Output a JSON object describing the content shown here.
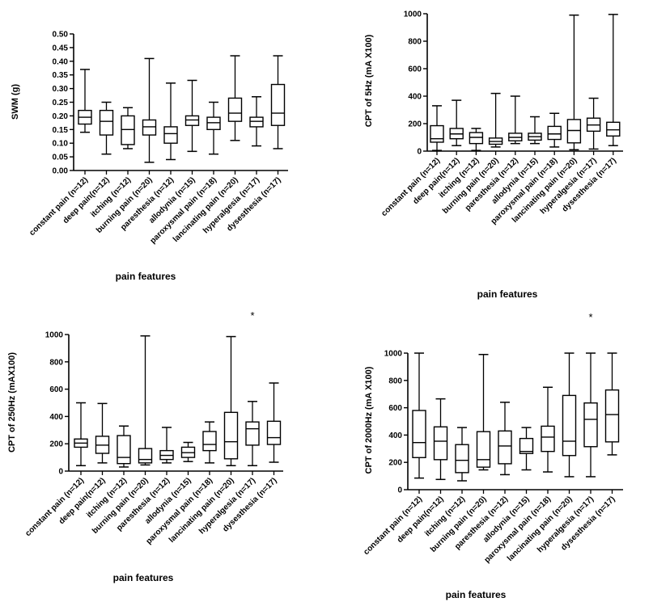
{
  "chart_data": [
    {
      "type": "box",
      "ylabel": "SWM (g)",
      "xlabel": "pain features",
      "ylim": [
        0,
        0.5
      ],
      "yticks": [
        "0.00",
        "0.05",
        "0.10",
        "0.15",
        "0.20",
        "0.25",
        "0.30",
        "0.35",
        "0.40",
        "0.45",
        "0.50"
      ],
      "categories": [
        "constant pain (n=12)",
        "deep pain(n=12)",
        "itching (n=12)",
        "burning pain (n=20)",
        "paresthesia (n=12)",
        "allodynia (n=15)",
        "paroxysmal pain (n=18)",
        "lancinating pain (n=20)",
        "hyperalgesia (n=17)",
        "dysesthesia (n=17)"
      ],
      "boxes": [
        {
          "min": 0.14,
          "q1": 0.17,
          "median": 0.195,
          "q3": 0.22,
          "max": 0.37
        },
        {
          "min": 0.06,
          "q1": 0.13,
          "median": 0.18,
          "q3": 0.22,
          "max": 0.25
        },
        {
          "min": 0.08,
          "q1": 0.095,
          "median": 0.15,
          "q3": 0.2,
          "max": 0.23
        },
        {
          "min": 0.03,
          "q1": 0.13,
          "median": 0.16,
          "q3": 0.185,
          "max": 0.41
        },
        {
          "min": 0.04,
          "q1": 0.1,
          "median": 0.135,
          "q3": 0.16,
          "max": 0.32
        },
        {
          "min": 0.07,
          "q1": 0.165,
          "median": 0.185,
          "q3": 0.2,
          "max": 0.33
        },
        {
          "min": 0.06,
          "q1": 0.15,
          "median": 0.175,
          "q3": 0.195,
          "max": 0.25
        },
        {
          "min": 0.11,
          "q1": 0.18,
          "median": 0.21,
          "q3": 0.265,
          "max": 0.42
        },
        {
          "min": 0.09,
          "q1": 0.16,
          "median": 0.18,
          "q3": 0.195,
          "max": 0.27
        },
        {
          "min": 0.08,
          "q1": 0.165,
          "median": 0.21,
          "q3": 0.315,
          "max": 0.42
        }
      ],
      "annotation": ""
    },
    {
      "type": "box",
      "ylabel": "CPT of 5Hz (mA X100)",
      "xlabel": "pain features",
      "ylim": [
        0,
        1000
      ],
      "yticks": [
        "0",
        "200",
        "400",
        "600",
        "800",
        "1000"
      ],
      "categories": [
        "constant pain (n=12)",
        "deep pain(n=12)",
        "itching (n=12)",
        "burning pain (n=20)",
        "paresthesia (n=12)",
        "allodynia (n=15)",
        "paroxysmal pain (n=18)",
        "lancinating pain (n=20)",
        "hyperalgesia (n=17)",
        "dysesthesia (n=17)"
      ],
      "boxes": [
        {
          "min": 5,
          "q1": 65,
          "median": 90,
          "q3": 185,
          "max": 330
        },
        {
          "min": 40,
          "q1": 90,
          "median": 125,
          "q3": 165,
          "max": 370
        },
        {
          "min": 5,
          "q1": 55,
          "median": 100,
          "q3": 135,
          "max": 165
        },
        {
          "min": 30,
          "q1": 50,
          "median": 70,
          "q3": 95,
          "max": 420
        },
        {
          "min": 55,
          "q1": 75,
          "median": 100,
          "q3": 130,
          "max": 400
        },
        {
          "min": 55,
          "q1": 80,
          "median": 105,
          "q3": 130,
          "max": 250
        },
        {
          "min": 30,
          "q1": 85,
          "median": 125,
          "q3": 180,
          "max": 275
        },
        {
          "min": 10,
          "q1": 60,
          "median": 150,
          "q3": 230,
          "max": 990
        },
        {
          "min": 15,
          "q1": 145,
          "median": 190,
          "q3": 240,
          "max": 385
        },
        {
          "min": 40,
          "q1": 110,
          "median": 155,
          "q3": 210,
          "max": 995
        }
      ],
      "annotation": ""
    },
    {
      "type": "box",
      "ylabel": "CPT of 250Hz (mAX100)",
      "xlabel": "pain features",
      "ylim": [
        0,
        1000
      ],
      "yticks": [
        "0",
        "200",
        "400",
        "600",
        "800",
        "1000"
      ],
      "categories": [
        "constant pain (n=12)",
        "deep pain(n=12)",
        "itching (n=12)",
        "burning pain (n=20)",
        "paresthesia (n=12)",
        "allodynia (n=15)",
        "paroxysmal pain (n=18)",
        "lancinating pain (n=20)",
        "hyperalgesia (n=17)",
        "dysesthesia (n=17)"
      ],
      "boxes": [
        {
          "min": 40,
          "q1": 175,
          "median": 205,
          "q3": 235,
          "max": 500
        },
        {
          "min": 60,
          "q1": 130,
          "median": 190,
          "q3": 255,
          "max": 495
        },
        {
          "min": 30,
          "q1": 55,
          "median": 100,
          "q3": 260,
          "max": 330
        },
        {
          "min": 45,
          "q1": 60,
          "median": 85,
          "q3": 165,
          "max": 990
        },
        {
          "min": 60,
          "q1": 85,
          "median": 115,
          "q3": 150,
          "max": 320
        },
        {
          "min": 70,
          "q1": 100,
          "median": 135,
          "q3": 175,
          "max": 210
        },
        {
          "min": 60,
          "q1": 150,
          "median": 195,
          "q3": 290,
          "max": 360
        },
        {
          "min": 40,
          "q1": 90,
          "median": 215,
          "q3": 430,
          "max": 985
        },
        {
          "min": 40,
          "q1": 190,
          "median": 310,
          "q3": 360,
          "max": 510
        },
        {
          "min": 65,
          "q1": 195,
          "median": 245,
          "q3": 365,
          "max": 645
        }
      ],
      "annotation": "*",
      "annotation_index": 8
    },
    {
      "type": "box",
      "ylabel": "CPT of 2000Hz (mA X100)",
      "xlabel": "pain features",
      "ylim": [
        0,
        1000
      ],
      "yticks": [
        "0",
        "200",
        "400",
        "600",
        "800",
        "1000"
      ],
      "categories": [
        "constant pain (n=12)",
        "deep pain(n=12)",
        "itching (n=12)",
        "burning pain (n=20)",
        "paresthesia (n=12)",
        "allodynia (n=15)",
        "paroxysmal pain (n=18)",
        "lancinating pain (n=20)",
        "hyperalgesia (n=17)",
        "dysesthesia (n=17)"
      ],
      "boxes": [
        {
          "min": 85,
          "q1": 235,
          "median": 345,
          "q3": 580,
          "max": 1000
        },
        {
          "min": 75,
          "q1": 220,
          "median": 355,
          "q3": 460,
          "max": 665
        },
        {
          "min": 65,
          "q1": 125,
          "median": 215,
          "q3": 330,
          "max": 455
        },
        {
          "min": 145,
          "q1": 165,
          "median": 220,
          "q3": 425,
          "max": 990
        },
        {
          "min": 110,
          "q1": 190,
          "median": 320,
          "q3": 430,
          "max": 640
        },
        {
          "min": 145,
          "q1": 265,
          "median": 280,
          "q3": 375,
          "max": 455
        },
        {
          "min": 130,
          "q1": 280,
          "median": 385,
          "q3": 465,
          "max": 750
        },
        {
          "min": 95,
          "q1": 250,
          "median": 355,
          "q3": 690,
          "max": 1000
        },
        {
          "min": 95,
          "q1": 315,
          "median": 515,
          "q3": 635,
          "max": 1000
        },
        {
          "min": 255,
          "q1": 350,
          "median": 550,
          "q3": 730,
          "max": 1000
        }
      ],
      "annotation": "*",
      "annotation_index": 8
    }
  ]
}
